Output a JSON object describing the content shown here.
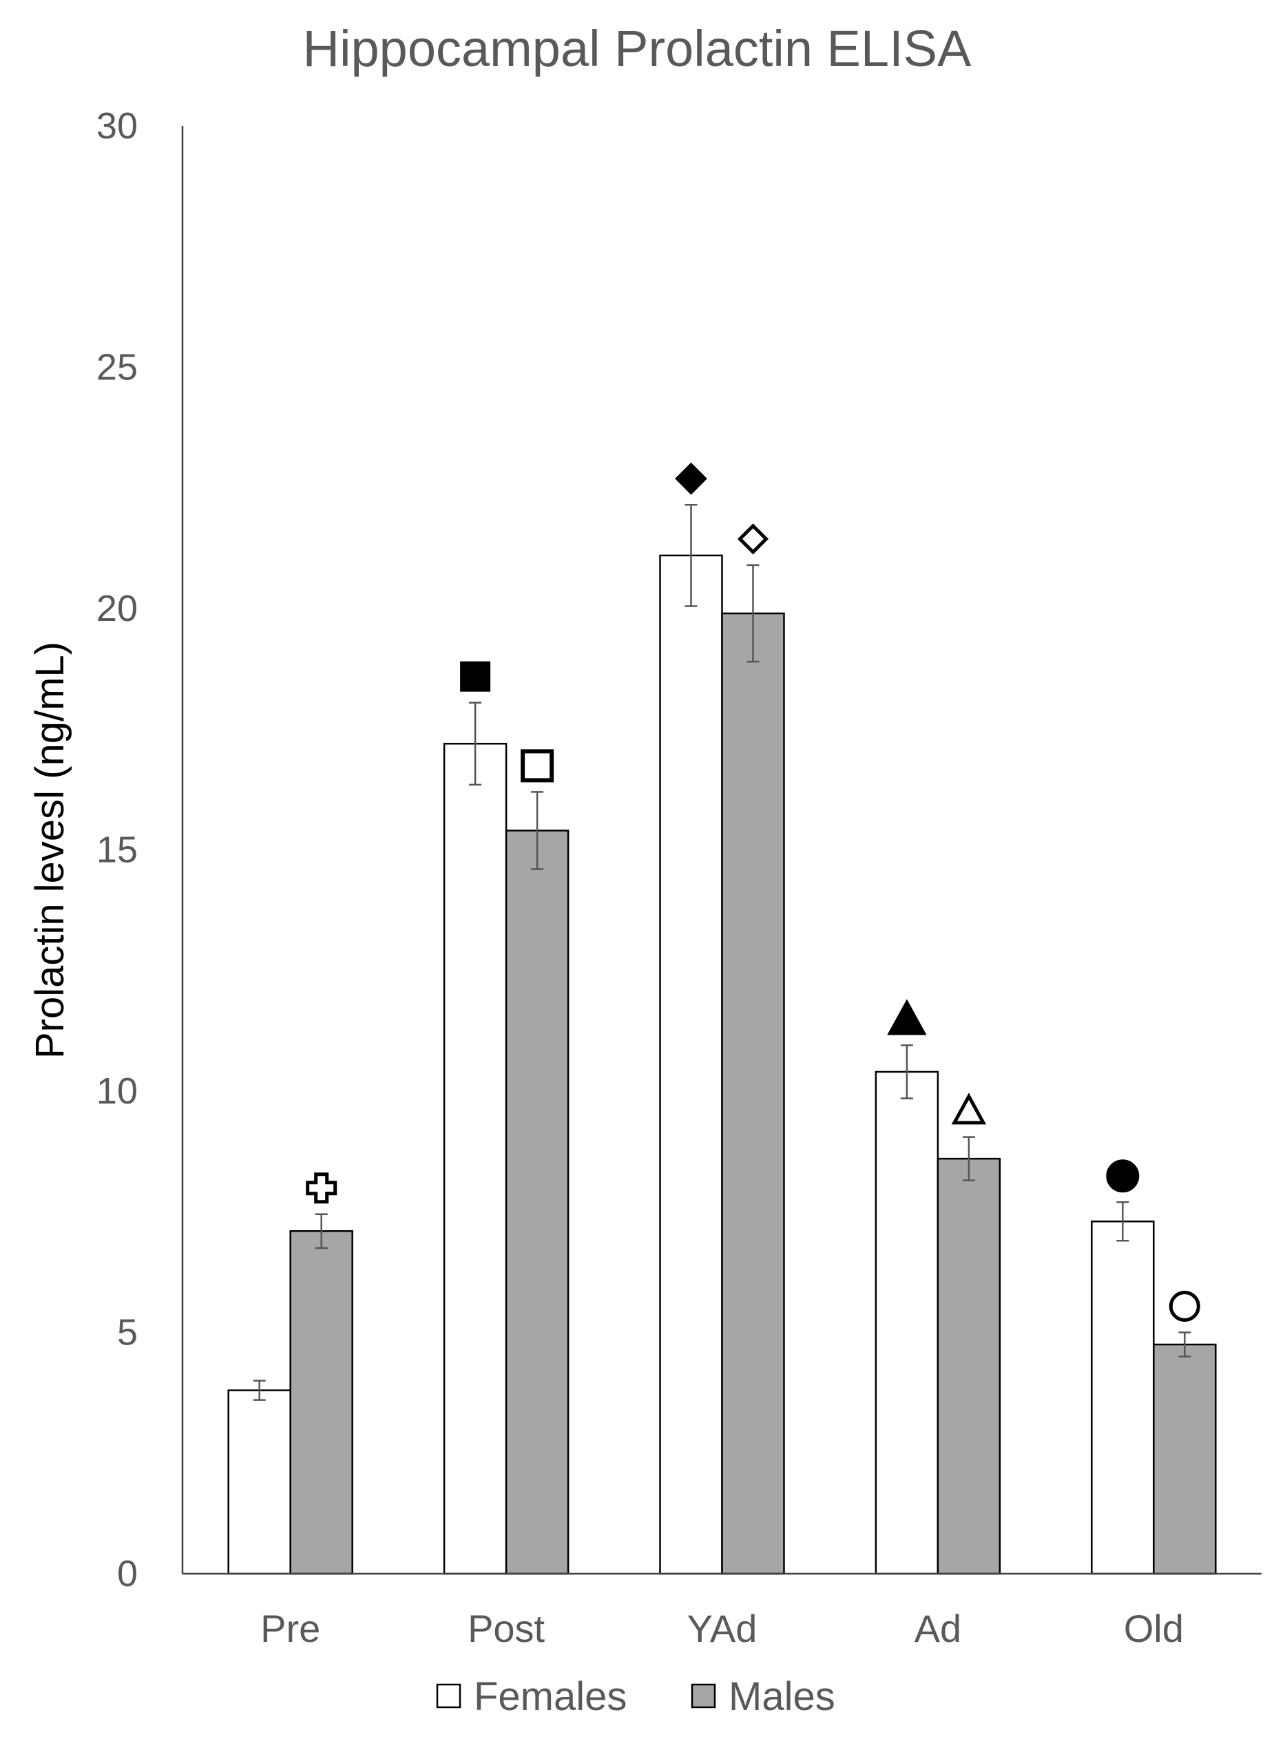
{
  "chart_data": {
    "type": "bar",
    "title": "Hippocampal Prolactin ELISA",
    "xlabel": "",
    "ylabel": "Prolactin levesl (ng/mL)",
    "ylim": [
      0,
      30
    ],
    "yticks": [
      0,
      5,
      10,
      15,
      20,
      25,
      30
    ],
    "categories": [
      "Pre",
      "Post",
      "YAd",
      "Ad",
      "Old"
    ],
    "grid": false,
    "legend_position": "bottom",
    "series": [
      {
        "name": "Females",
        "color": "#ffffff",
        "values": [
          3.8,
          17.2,
          21.1,
          10.4,
          7.3
        ],
        "errors": [
          0.2,
          0.85,
          1.05,
          0.55,
          0.4
        ],
        "markers": [
          "",
          "filled-square",
          "filled-diamond",
          "filled-triangle",
          "filled-circle"
        ]
      },
      {
        "name": "Males",
        "color": "#a6a6a6",
        "values": [
          7.1,
          15.4,
          19.9,
          8.6,
          4.75
        ],
        "errors": [
          0.35,
          0.8,
          1.0,
          0.45,
          0.25
        ],
        "markers": [
          "open-cross",
          "open-square",
          "open-diamond",
          "open-triangle",
          "open-circle"
        ]
      }
    ]
  }
}
